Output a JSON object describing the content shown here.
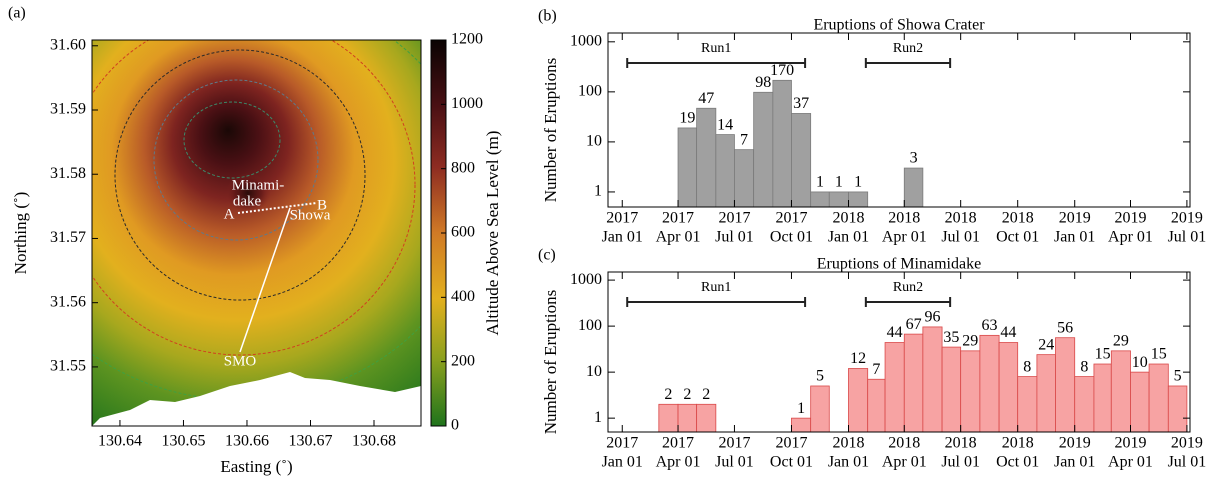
{
  "chart_data": [
    {
      "type": "map",
      "panel": "(a)",
      "xlabel": "Easting (˚)",
      "ylabel": "Northing (˚)",
      "xlim": [
        130.6356,
        130.6874
      ],
      "ylim": [
        31.5408,
        31.6009
      ],
      "xticks": [
        130.64,
        130.65,
        130.66,
        130.67,
        130.68
      ],
      "yticks": [
        31.55,
        31.56,
        31.57,
        31.58,
        31.59,
        {
          "value": 31.6,
          "label": "31.60"
        }
      ],
      "colorbar": {
        "label": "Altitude Above Sea Level (m)",
        "lim": [
          0,
          1200
        ],
        "ticks": [
          0,
          200,
          400,
          600,
          800,
          1000,
          1200
        ]
      },
      "annotations": [
        "Minami-",
        "dake",
        "A",
        "B",
        "Showa",
        "SMO"
      ]
    },
    {
      "type": "bar",
      "panel": "(b)",
      "title": "Eruptions of Showa Crater",
      "ylabel": "Number of Eruptions",
      "xlim": [
        "2016-12-09",
        "2019-07-06"
      ],
      "xticks": [
        {
          "value": "2017-01-01",
          "label": [
            "2017",
            "Jan 01"
          ]
        },
        {
          "value": "2017-04-01",
          "label": [
            "2017",
            "Apr 01"
          ]
        },
        {
          "value": "2017-07-01",
          "label": [
            "2017",
            "Jul 01"
          ]
        },
        {
          "value": "2017-10-01",
          "label": [
            "2017",
            "Oct 01"
          ]
        },
        {
          "value": "2018-01-01",
          "label": [
            "2018",
            "Jan 01"
          ]
        },
        {
          "value": "2018-04-01",
          "label": [
            "2018",
            "Apr 01"
          ]
        },
        {
          "value": "2018-07-01",
          "label": [
            "2018",
            "Jul 01"
          ]
        },
        {
          "value": "2018-10-01",
          "label": [
            "2018",
            "Oct 01"
          ]
        },
        {
          "value": "2019-01-01",
          "label": [
            "2019",
            "Jan 01"
          ]
        },
        {
          "value": "2019-04-01",
          "label": [
            "2019",
            "Apr 01"
          ]
        },
        {
          "value": "2019-07-01",
          "label": [
            "2019",
            "Jul 01"
          ]
        }
      ],
      "ylim": [
        0.5,
        1500
      ],
      "yticks": [
        1,
        10,
        100,
        1000
      ],
      "log_y": true,
      "color": "#a0a0a0",
      "edgecolor": "#7a7a7a",
      "x": [
        "2017-04-01",
        "2017-05-01",
        "2017-06-01",
        "2017-07-01",
        "2017-08-01",
        "2017-09-01",
        "2017-10-01",
        "2017-11-01",
        "2017-12-01",
        "2018-01-01",
        "2018-04-01"
      ],
      "values": [
        19,
        47,
        14,
        7,
        98,
        170,
        37,
        1,
        1,
        1,
        3
      ],
      "runs": [
        {
          "label": "Run1",
          "start": "2017-01-09",
          "end": "2017-10-23"
        },
        {
          "label": "Run2",
          "start": "2018-01-29",
          "end": "2018-06-14"
        }
      ]
    },
    {
      "type": "bar",
      "panel": "(c)",
      "title": "Eruptions of Minamidake",
      "ylabel": "Number of Eruptions",
      "xlim": [
        "2016-12-09",
        "2019-07-06"
      ],
      "xticks": [
        {
          "value": "2017-01-01",
          "label": [
            "2017",
            "Jan 01"
          ]
        },
        {
          "value": "2017-04-01",
          "label": [
            "2017",
            "Apr 01"
          ]
        },
        {
          "value": "2017-07-01",
          "label": [
            "2017",
            "Jul 01"
          ]
        },
        {
          "value": "2017-10-01",
          "label": [
            "2017",
            "Oct 01"
          ]
        },
        {
          "value": "2018-01-01",
          "label": [
            "2018",
            "Jan 01"
          ]
        },
        {
          "value": "2018-04-01",
          "label": [
            "2018",
            "Apr 01"
          ]
        },
        {
          "value": "2018-07-01",
          "label": [
            "2018",
            "Jul 01"
          ]
        },
        {
          "value": "2018-10-01",
          "label": [
            "2018",
            "Oct 01"
          ]
        },
        {
          "value": "2019-01-01",
          "label": [
            "2019",
            "Jan 01"
          ]
        },
        {
          "value": "2019-04-01",
          "label": [
            "2019",
            "Apr 01"
          ]
        },
        {
          "value": "2019-07-01",
          "label": [
            "2019",
            "Jul 01"
          ]
        }
      ],
      "ylim": [
        0.5,
        1500
      ],
      "yticks": [
        1,
        10,
        100,
        1000
      ],
      "log_y": true,
      "color": "#f7a3a3",
      "edgecolor": "#d94848",
      "x": [
        "2017-03-01",
        "2017-04-01",
        "2017-05-01",
        "2017-10-01",
        "2017-11-01",
        "2018-01-01",
        "2018-02-01",
        "2018-03-01",
        "2018-04-01",
        "2018-05-01",
        "2018-06-01",
        "2018-07-01",
        "2018-08-01",
        "2018-09-01",
        "2018-10-01",
        "2018-11-01",
        "2018-12-01",
        "2019-01-01",
        "2019-02-01",
        "2019-03-01",
        "2019-04-01",
        "2019-05-01",
        "2019-06-01"
      ],
      "values": [
        2,
        2,
        2,
        1,
        5,
        12,
        7,
        44,
        67,
        96,
        35,
        29,
        63,
        44,
        8,
        24,
        56,
        8,
        15,
        29,
        10,
        15,
        5
      ],
      "runs": [
        {
          "label": "Run1",
          "start": "2017-01-09",
          "end": "2017-10-23"
        },
        {
          "label": "Run2",
          "start": "2018-01-29",
          "end": "2018-06-14"
        }
      ]
    }
  ]
}
